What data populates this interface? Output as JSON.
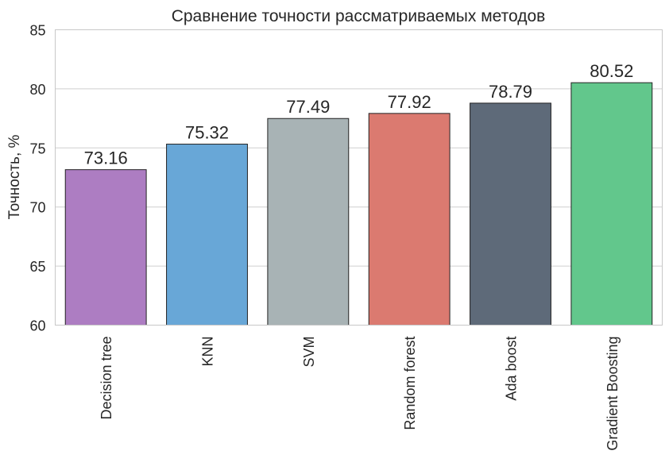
{
  "chart_data": {
    "type": "bar",
    "title": "Сравнение точности рассматриваемых методов",
    "xlabel": "",
    "ylabel": "Точность, %",
    "ylim": [
      60,
      85
    ],
    "yticks": [
      "60",
      "65",
      "70",
      "75",
      "80",
      "85"
    ],
    "grid": true,
    "categories": [
      "Decision tree",
      "KNN",
      "SVM",
      "Random forest",
      "Ada boost",
      "Gradient Boosting"
    ],
    "values": [
      73.16,
      75.32,
      77.49,
      77.92,
      78.79,
      80.52
    ],
    "value_labels": [
      "73.16",
      "75.32",
      "77.49",
      "77.92",
      "78.79",
      "80.52"
    ],
    "colors": [
      "#ad7dc2",
      "#68a7d7",
      "#a8b3b5",
      "#db7a70",
      "#5e6a79",
      "#62c78c"
    ]
  }
}
